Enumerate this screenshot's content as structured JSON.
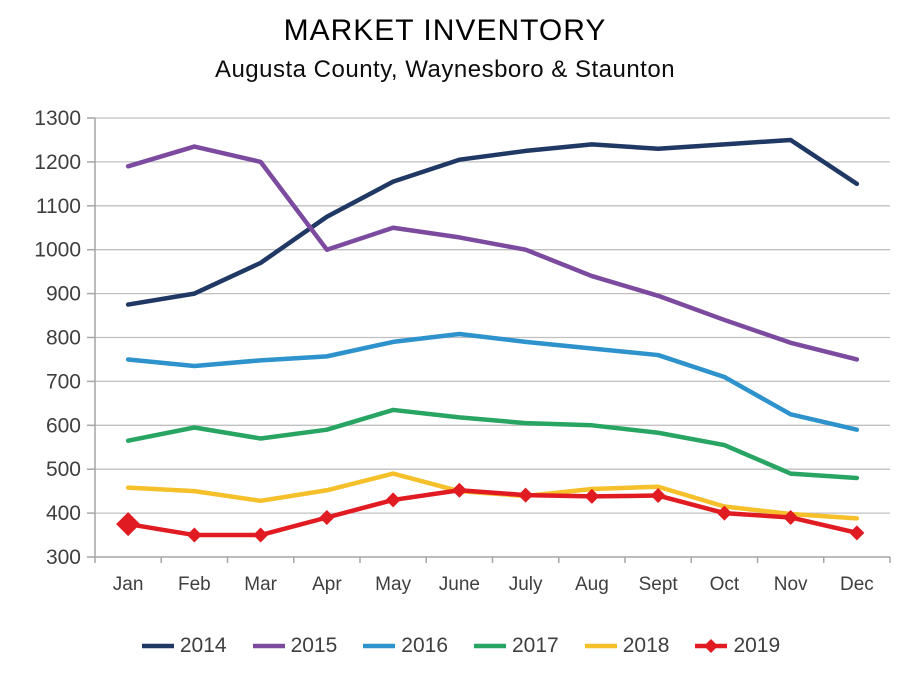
{
  "title": "MARKET INVENTORY",
  "subtitle": "Augusta County, Waynesboro & Staunton",
  "colors": {
    "grid": "#c0c0c0",
    "axis": "#a6a6a6",
    "tick_text": "#3f3f3f",
    "title_text": "#000000"
  },
  "chart_data": {
    "type": "line",
    "title": "MARKET INVENTORY",
    "subtitle": "Augusta County, Waynesboro & Staunton",
    "categories": [
      "Jan",
      "Feb",
      "Mar",
      "Apr",
      "May",
      "June",
      "July",
      "Aug",
      "Sept",
      "Oct",
      "Nov",
      "Dec"
    ],
    "ylim": [
      300,
      1300
    ],
    "ytick_step": 100,
    "yticks": [
      300,
      400,
      500,
      600,
      700,
      800,
      900,
      1000,
      1100,
      1200,
      1300
    ],
    "grid": true,
    "legend_position": "bottom",
    "series": [
      {
        "name": "2014",
        "color": "#1f3864",
        "marker": "none",
        "values": [
          875,
          900,
          970,
          1075,
          1155,
          1205,
          1225,
          1240,
          1230,
          1240,
          1250,
          1150
        ]
      },
      {
        "name": "2015",
        "color": "#7c4ba0",
        "marker": "none",
        "values": [
          1190,
          1235,
          1200,
          1000,
          1050,
          1028,
          1000,
          940,
          895,
          840,
          788,
          750
        ]
      },
      {
        "name": "2016",
        "color": "#2e93cc",
        "marker": "none",
        "values": [
          750,
          735,
          748,
          757,
          790,
          808,
          790,
          775,
          760,
          710,
          625,
          590
        ]
      },
      {
        "name": "2017",
        "color": "#28a463",
        "marker": "none",
        "values": [
          565,
          595,
          570,
          590,
          635,
          618,
          605,
          600,
          583,
          555,
          490,
          480
        ]
      },
      {
        "name": "2018",
        "color": "#f5c02a",
        "marker": "none",
        "values": [
          458,
          450,
          428,
          452,
          490,
          450,
          439,
          455,
          460,
          415,
          398,
          388
        ]
      },
      {
        "name": "2019",
        "color": "#e11b22",
        "marker": "diamond",
        "emphasized_point_index": 0,
        "values": [
          375,
          350,
          350,
          390,
          430,
          452,
          441,
          438,
          440,
          400,
          390,
          355
        ]
      }
    ]
  }
}
